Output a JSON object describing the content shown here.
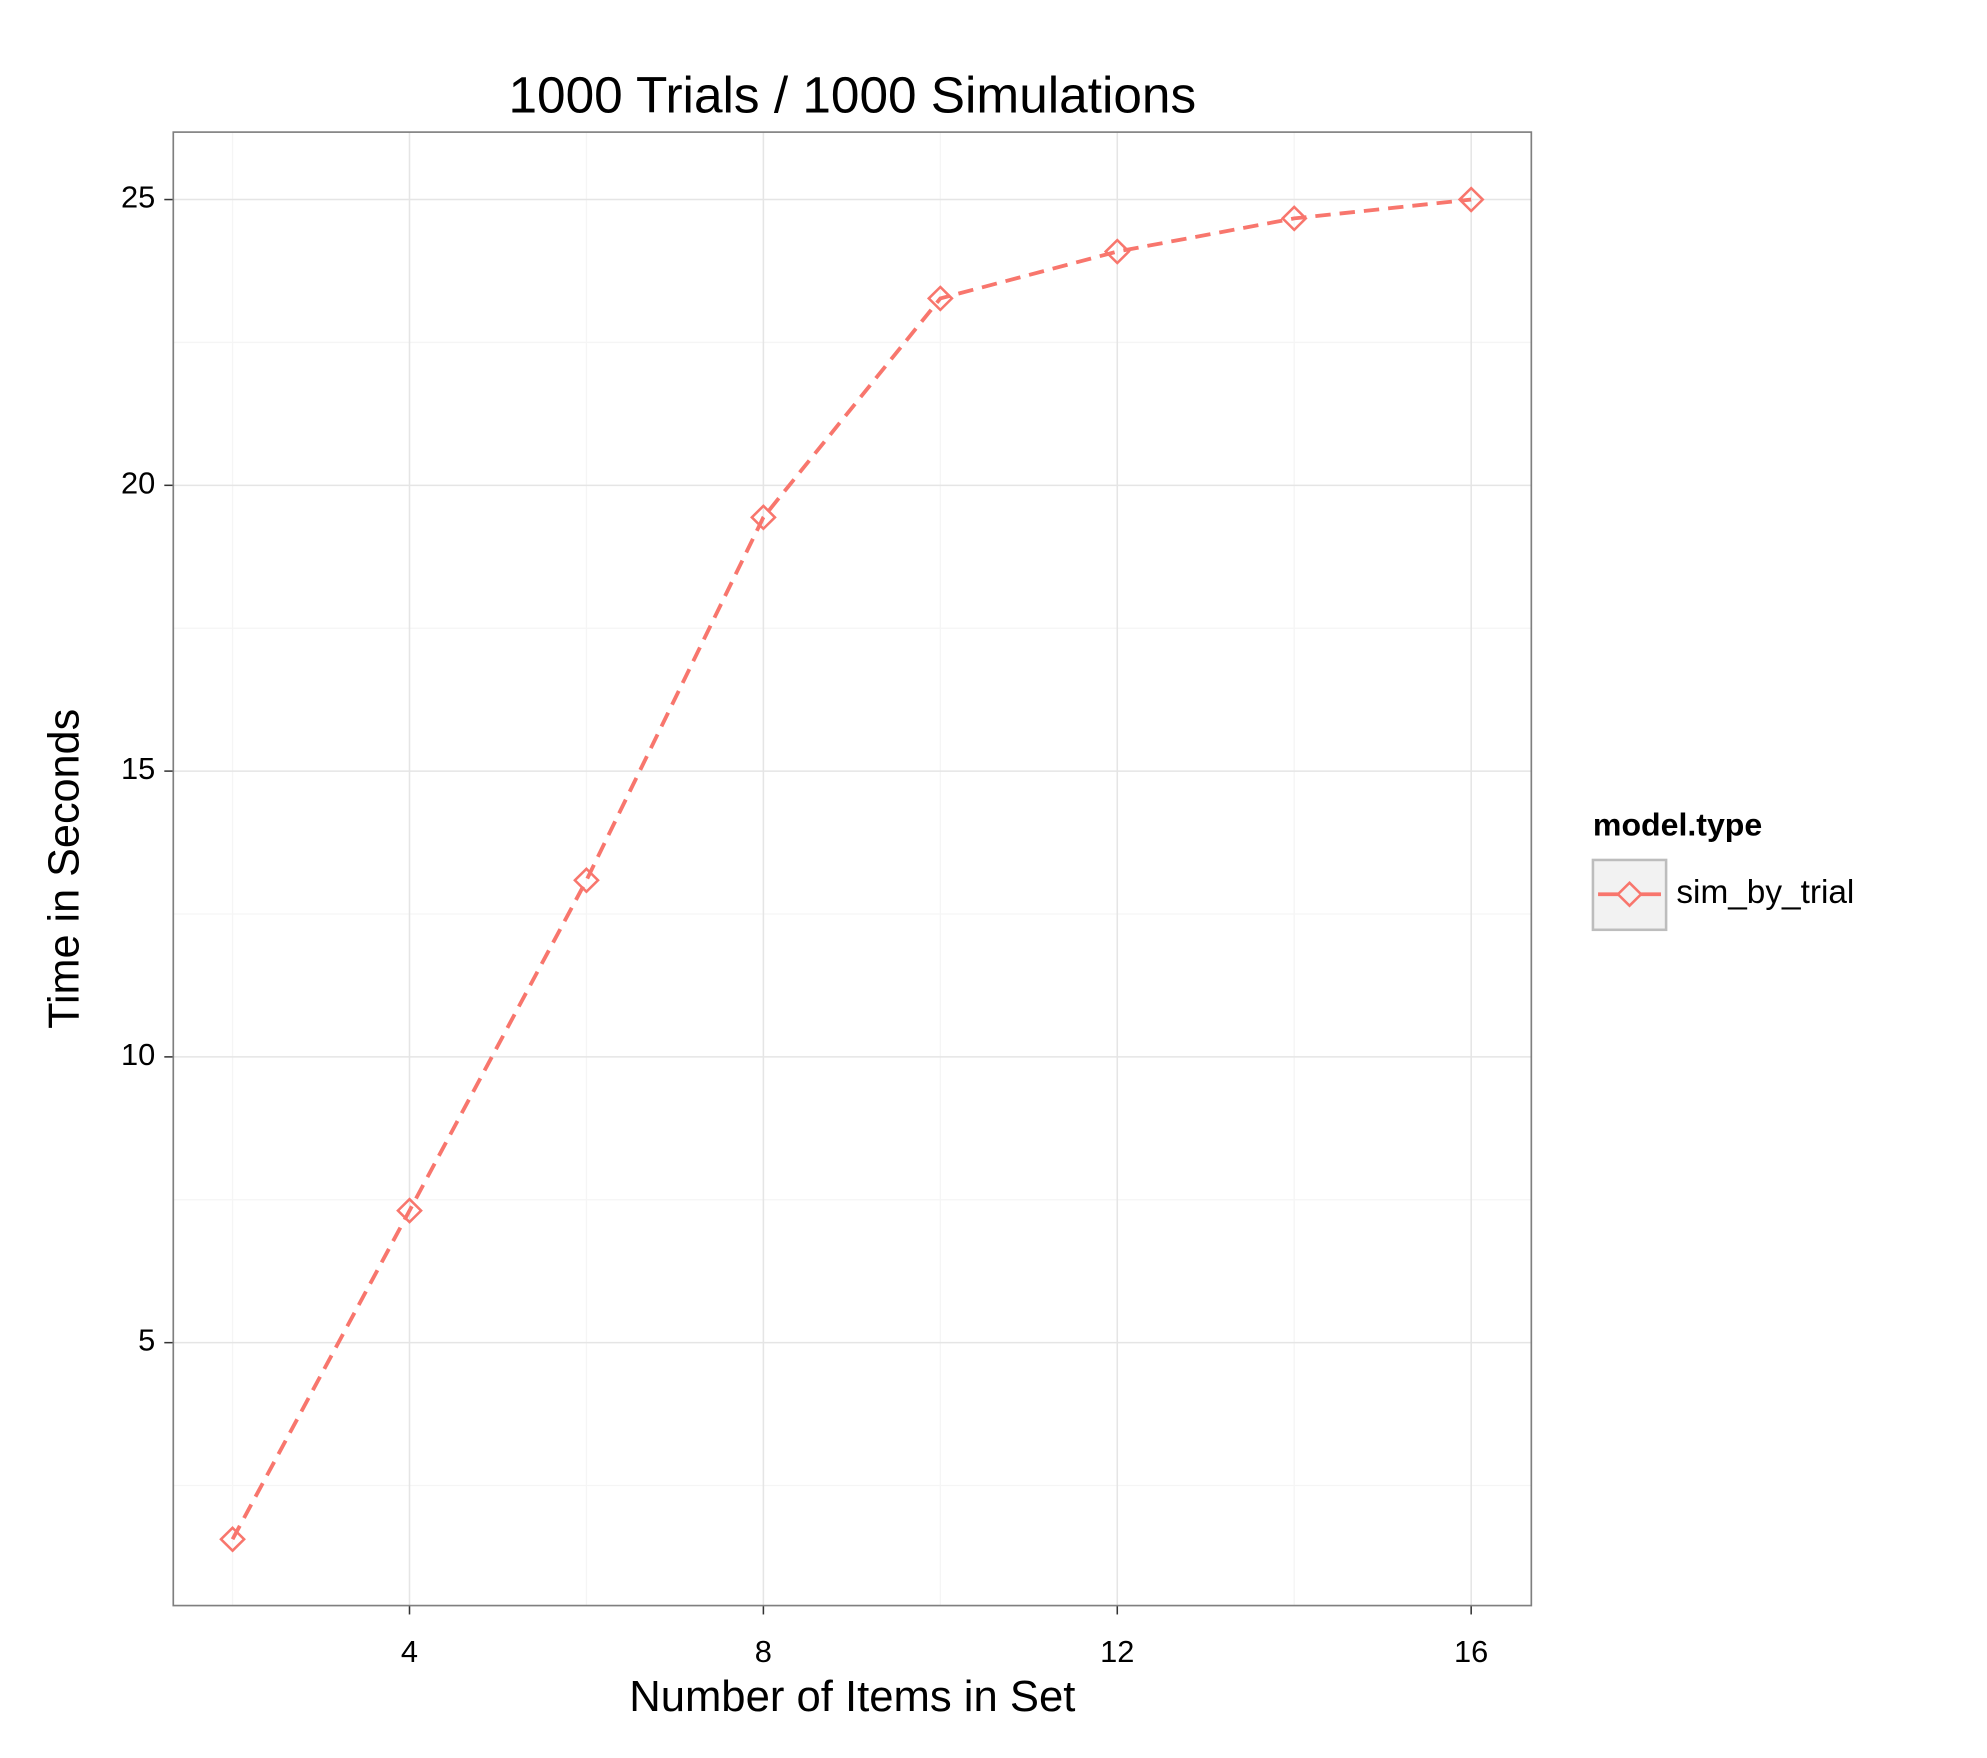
{
  "chart_data": {
    "type": "line",
    "title": "1000 Trials / 1000 Simulations",
    "x_label": "Number of Items in Set",
    "y_label": "Time in Seconds",
    "legend_title": "model.type",
    "x": [
      2,
      4,
      6,
      8,
      10,
      12,
      14,
      16
    ],
    "series": [
      {
        "name": "sim_by_trial",
        "color": "#F8766D",
        "values": [
          1.56,
          7.31,
          13.09,
          19.44,
          23.27,
          24.09,
          24.67,
          25.0
        ]
      }
    ],
    "xlim": [
      1.33,
      16.68
    ],
    "ylim": [
      0.4,
      26.18
    ],
    "xticks": [
      4,
      8,
      12,
      16
    ],
    "yticks": [
      5,
      10,
      15,
      20,
      25
    ],
    "minor_xticks": [
      2,
      6,
      10,
      14
    ],
    "minor_yticks": [
      2.5,
      7.5,
      12.5,
      17.5,
      22.5
    ],
    "grid": true,
    "legend": "right"
  }
}
